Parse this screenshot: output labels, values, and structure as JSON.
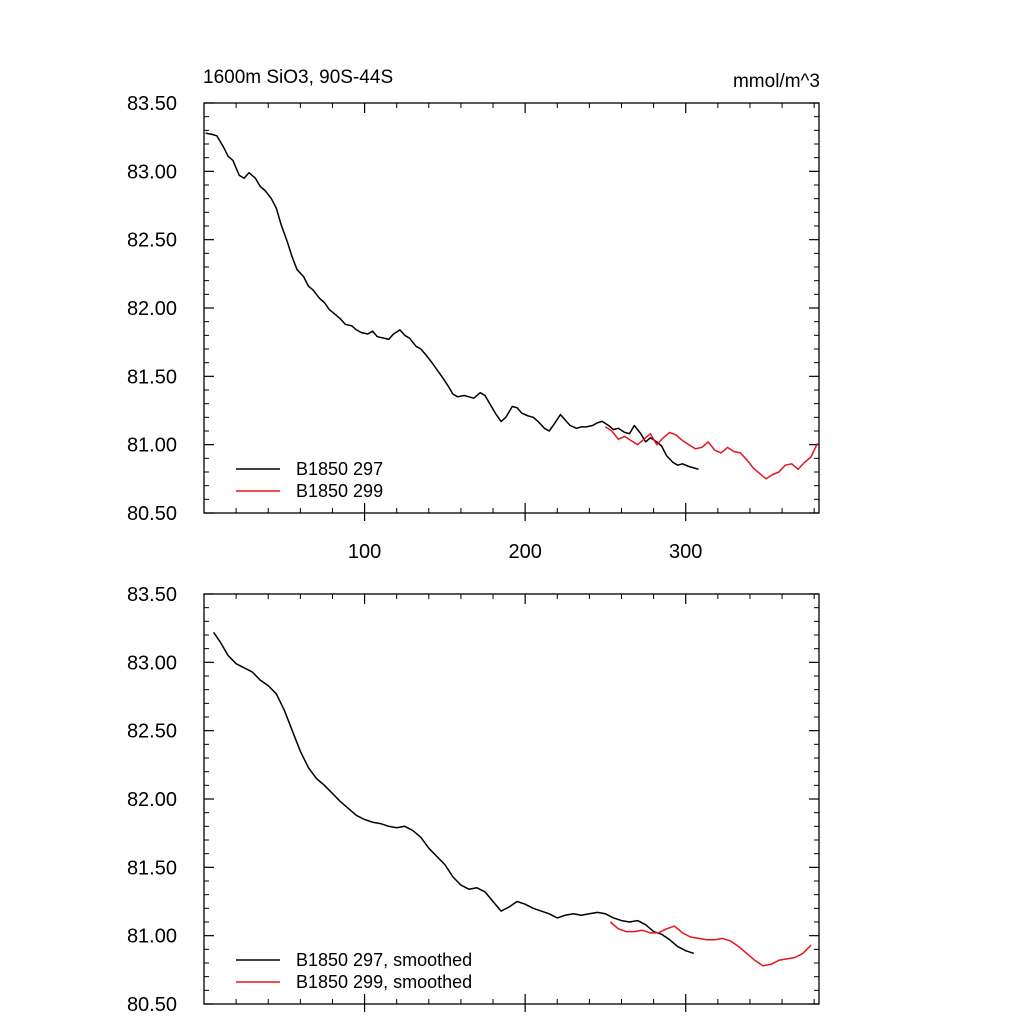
{
  "figure": {
    "left_title": "1600m SiO3, 90S-44S",
    "right_title": "mmol/m^3"
  },
  "colors": {
    "series_297": "#000000",
    "series_299": "#e8141c",
    "axis": "#000000"
  },
  "chart_data": [
    {
      "type": "line",
      "panel": "top",
      "title": "1600m SiO3, 90S-44S",
      "units": "mmol/m^3",
      "xlabel": "",
      "ylabel": "",
      "xlim": [
        0,
        383
      ],
      "ylim": [
        80.5,
        83.5
      ],
      "x_ticks": [
        100,
        200,
        300
      ],
      "x_tick_labels": [
        "100",
        "200",
        "300"
      ],
      "y_ticks": [
        80.5,
        81.0,
        81.5,
        82.0,
        82.5,
        83.0,
        83.5
      ],
      "y_tick_labels": [
        "80.50",
        "81.00",
        "81.50",
        "82.00",
        "82.50",
        "83.00",
        "83.50"
      ],
      "legend_position": "bottom-left",
      "series": [
        {
          "name": "B1850 297",
          "color": "#000000",
          "x": [
            1,
            5,
            8,
            12,
            15,
            18,
            22,
            25,
            28,
            32,
            35,
            38,
            42,
            45,
            48,
            52,
            55,
            58,
            62,
            65,
            68,
            72,
            75,
            78,
            82,
            85,
            88,
            92,
            95,
            98,
            102,
            105,
            108,
            112,
            115,
            118,
            122,
            125,
            128,
            132,
            135,
            138,
            142,
            145,
            148,
            152,
            155,
            158,
            162,
            165,
            168,
            172,
            175,
            178,
            182,
            185,
            188,
            192,
            195,
            198,
            202,
            205,
            208,
            212,
            215,
            218,
            222,
            225,
            228,
            232,
            235,
            238,
            242,
            245,
            248,
            252,
            255,
            258,
            262,
            265,
            268,
            272,
            275,
            278,
            282,
            285,
            288,
            292,
            295,
            298,
            302,
            305,
            308
          ],
          "values": [
            83.28,
            83.27,
            83.26,
            83.18,
            83.11,
            83.08,
            82.97,
            82.95,
            82.99,
            82.95,
            82.89,
            82.86,
            82.8,
            82.73,
            82.61,
            82.48,
            82.37,
            82.28,
            82.23,
            82.16,
            82.13,
            82.07,
            82.04,
            81.99,
            81.95,
            81.92,
            81.88,
            81.87,
            81.84,
            81.82,
            81.81,
            81.83,
            81.79,
            81.78,
            81.77,
            81.81,
            81.84,
            81.8,
            81.78,
            81.72,
            81.7,
            81.66,
            81.6,
            81.55,
            81.5,
            81.43,
            81.37,
            81.35,
            81.36,
            81.35,
            81.34,
            81.38,
            81.36,
            81.3,
            81.22,
            81.17,
            81.2,
            81.28,
            81.27,
            81.23,
            81.21,
            81.2,
            81.17,
            81.12,
            81.1,
            81.15,
            81.22,
            81.18,
            81.14,
            81.12,
            81.13,
            81.13,
            81.14,
            81.16,
            81.17,
            81.14,
            81.11,
            81.12,
            81.09,
            81.08,
            81.14,
            81.08,
            81.02,
            81.05,
            81.02,
            80.99,
            80.92,
            80.87,
            80.85,
            80.86,
            80.84,
            80.83,
            80.82
          ]
        },
        {
          "name": "B1850 299",
          "color": "#e8141c",
          "x": [
            250,
            254,
            258,
            262,
            266,
            270,
            274,
            278,
            282,
            286,
            290,
            294,
            298,
            302,
            306,
            310,
            314,
            318,
            322,
            326,
            330,
            334,
            338,
            342,
            346,
            350,
            354,
            358,
            362,
            366,
            370,
            374,
            378,
            382
          ],
          "values": [
            81.13,
            81.1,
            81.04,
            81.06,
            81.03,
            81.0,
            81.04,
            81.08,
            81.0,
            81.05,
            81.09,
            81.07,
            81.03,
            81.0,
            80.97,
            80.98,
            81.02,
            80.96,
            80.94,
            80.98,
            80.95,
            80.94,
            80.89,
            80.83,
            80.79,
            80.75,
            80.78,
            80.8,
            80.85,
            80.86,
            80.82,
            80.87,
            80.91,
            81.01
          ]
        }
      ]
    },
    {
      "type": "line",
      "panel": "bottom",
      "title": "",
      "xlabel": "",
      "ylabel": "",
      "xlim": [
        0,
        383
      ],
      "ylim": [
        80.5,
        83.5
      ],
      "x_ticks": [
        100,
        200,
        300
      ],
      "x_tick_labels": [],
      "y_ticks": [
        80.5,
        81.0,
        81.5,
        82.0,
        82.5,
        83.0,
        83.5
      ],
      "y_tick_labels": [
        "80.50",
        "81.00",
        "81.50",
        "82.00",
        "82.50",
        "83.00",
        "83.50"
      ],
      "legend_position": "bottom-left",
      "series": [
        {
          "name": "B1850 297, smoothed",
          "color": "#000000",
          "x": [
            6,
            10,
            15,
            20,
            25,
            30,
            35,
            40,
            45,
            50,
            55,
            60,
            65,
            70,
            75,
            80,
            85,
            90,
            95,
            100,
            105,
            110,
            115,
            120,
            125,
            130,
            135,
            140,
            145,
            150,
            155,
            160,
            165,
            170,
            175,
            180,
            185,
            190,
            195,
            200,
            205,
            210,
            215,
            220,
            225,
            230,
            235,
            240,
            245,
            250,
            255,
            260,
            265,
            270,
            275,
            280,
            285,
            290,
            295,
            300,
            305
          ],
          "values": [
            83.22,
            83.15,
            83.05,
            82.99,
            82.96,
            82.93,
            82.87,
            82.83,
            82.77,
            82.65,
            82.5,
            82.35,
            82.23,
            82.15,
            82.1,
            82.04,
            81.98,
            81.93,
            81.88,
            81.85,
            81.83,
            81.82,
            81.8,
            81.79,
            81.8,
            81.77,
            81.72,
            81.64,
            81.58,
            81.52,
            81.43,
            81.37,
            81.34,
            81.35,
            81.32,
            81.25,
            81.18,
            81.21,
            81.25,
            81.23,
            81.2,
            81.18,
            81.16,
            81.13,
            81.15,
            81.16,
            81.15,
            81.16,
            81.17,
            81.16,
            81.13,
            81.11,
            81.1,
            81.11,
            81.08,
            81.03,
            81.01,
            80.97,
            80.92,
            80.89,
            80.87
          ]
        },
        {
          "name": "B1850 299, smoothed",
          "color": "#e8141c",
          "x": [
            253,
            258,
            263,
            268,
            273,
            278,
            283,
            288,
            293,
            298,
            303,
            308,
            313,
            318,
            323,
            328,
            333,
            338,
            343,
            348,
            353,
            358,
            363,
            368,
            373,
            378
          ],
          "values": [
            81.1,
            81.05,
            81.03,
            81.03,
            81.04,
            81.02,
            81.02,
            81.05,
            81.07,
            81.02,
            80.99,
            80.98,
            80.97,
            80.97,
            80.98,
            80.96,
            80.92,
            80.87,
            80.82,
            80.78,
            80.79,
            80.82,
            80.83,
            80.84,
            80.87,
            80.93
          ]
        }
      ]
    }
  ]
}
